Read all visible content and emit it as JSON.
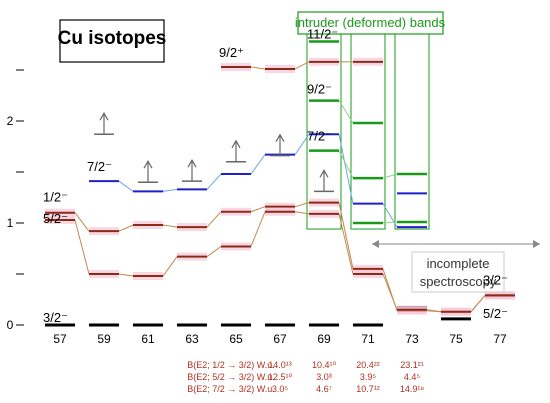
{
  "chart_data": {
    "type": "level-scheme",
    "title": "Cu isotopes",
    "intruder_label": "intruder (deformed) bands",
    "incomplete_label_line1": "incomplete",
    "incomplete_label_line2": "spectroscopy",
    "x_ticks": [
      "57",
      "59",
      "61",
      "63",
      "65",
      "67",
      "69",
      "71",
      "73",
      "75",
      "77"
    ],
    "y_ticks": [
      "0",
      "1",
      "2"
    ],
    "ylim": [
      0,
      2.8
    ],
    "colors": {
      "ground": "#000000",
      "s12": "#8b2a18",
      "f52": "#8b2a18",
      "p32_alt": "#8b2a18",
      "g92": "#8b2a18",
      "f72": "#1f1fcc",
      "intruder": "#1a9a1a",
      "connector_red": "#c08a50",
      "connector_green": "#8ccf8c",
      "connector_blue": "#6aa8e0",
      "highlight": "#f6c6d6",
      "arrow": "#666666",
      "be2_text": "#b03020"
    },
    "level_labels": [
      {
        "text": "3/2⁻",
        "a": 57,
        "e": 0.0
      },
      {
        "text": "1/2⁻",
        "a": 57,
        "e": 1.18
      },
      {
        "text": "5/2⁻",
        "a": 57,
        "e": 0.97
      },
      {
        "text": "7/2⁻",
        "a": 59,
        "e": 1.48
      },
      {
        "text": "9/2⁺",
        "a": 65,
        "e": 2.6
      },
      {
        "text": "11/2⁻",
        "a": 69,
        "e": 2.78
      },
      {
        "text": "9/2⁻",
        "a": 69,
        "e": 2.24
      },
      {
        "text": "7/2⁻",
        "a": 69,
        "e": 1.78
      },
      {
        "text": "3/2⁻",
        "a": 77,
        "e": 0.37
      },
      {
        "text": "5/2⁻",
        "a": 77,
        "e": 0.04
      }
    ],
    "series": [
      {
        "id": "ground",
        "points": [
          [
            57,
            0
          ],
          [
            59,
            0
          ],
          [
            61,
            0
          ],
          [
            63,
            0
          ],
          [
            65,
            0
          ],
          [
            67,
            0
          ],
          [
            69,
            0
          ],
          [
            71,
            0
          ],
          [
            73,
            0.17
          ],
          [
            75,
            0.06
          ],
          [
            77,
            0.29
          ]
        ]
      },
      {
        "id": "p12",
        "points": [
          [
            57,
            1.1
          ],
          [
            59,
            0.92
          ],
          [
            61,
            0.98
          ],
          [
            63,
            0.96
          ],
          [
            65,
            1.11
          ],
          [
            67,
            1.16
          ],
          [
            69,
            1.2
          ],
          [
            71,
            0.55
          ],
          [
            73,
            0.14
          ],
          [
            75,
            0.13
          ],
          [
            77,
            0.29
          ]
        ]
      },
      {
        "id": "f52",
        "points": [
          [
            57,
            1.03
          ],
          [
            59,
            0.5
          ],
          [
            61,
            0.48
          ],
          [
            63,
            0.67
          ],
          [
            65,
            0.77
          ],
          [
            67,
            1.11
          ],
          [
            69,
            1.09
          ],
          [
            71,
            0.5
          ],
          [
            73,
            0.15
          ],
          [
            75,
            0.13
          ],
          [
            77,
            0.29
          ]
        ]
      },
      {
        "id": "f72",
        "points": [
          [
            59,
            1.41
          ],
          [
            61,
            1.31
          ],
          [
            63,
            1.33
          ],
          [
            65,
            1.48
          ],
          [
            67,
            1.67
          ],
          [
            69,
            1.87
          ],
          [
            71,
            1.19
          ],
          [
            73,
            0.96
          ]
        ]
      },
      {
        "id": "g92",
        "points": [
          [
            65,
            2.53
          ],
          [
            67,
            2.51
          ],
          [
            69,
            2.58
          ],
          [
            71,
            2.58
          ]
        ]
      },
      {
        "id": "intruder-11",
        "points": [
          [
            69,
            2.78
          ]
        ]
      },
      {
        "id": "intruder-9",
        "points": [
          [
            69,
            2.2
          ],
          [
            71,
            1.98
          ]
        ]
      },
      {
        "id": "intruder-7",
        "points": [
          [
            69,
            1.71
          ],
          [
            71,
            1.44
          ],
          [
            73,
            1.48
          ]
        ]
      },
      {
        "id": "intruder-low",
        "points": [
          [
            71,
            1.0
          ],
          [
            73,
            1.01
          ]
        ]
      },
      {
        "id": "blue-73",
        "points": [
          [
            73,
            1.29
          ]
        ]
      }
    ],
    "arrows": [
      {
        "a": 59,
        "e": 1.87
      },
      {
        "a": 61,
        "e": 1.4
      },
      {
        "a": 63,
        "e": 1.41
      },
      {
        "a": 65,
        "e": 1.6
      },
      {
        "a": 67,
        "e": 1.66
      },
      {
        "a": 69,
        "e": 1.31
      }
    ],
    "be2": {
      "labels": [
        "B(E2; 1/2 → 3/2) W.u.",
        "B(E2; 5/2 → 3/2) W.u.",
        "B(E2; 7/2 → 3/2) W.u."
      ],
      "columns": [
        {
          "a": 67,
          "values": [
            "14.0¹³",
            "12.5¹⁰",
            "3.0⁵"
          ]
        },
        {
          "a": 69,
          "values": [
            "10.4¹⁰",
            "3.0³",
            "4.6⁷"
          ]
        },
        {
          "a": 71,
          "values": [
            "20.4²²",
            "3.9⁵",
            "10.7¹²"
          ]
        },
        {
          "a": 73,
          "values": [
            "23.1²¹",
            "4.4⁵",
            "14.9¹⁸"
          ]
        }
      ]
    }
  }
}
